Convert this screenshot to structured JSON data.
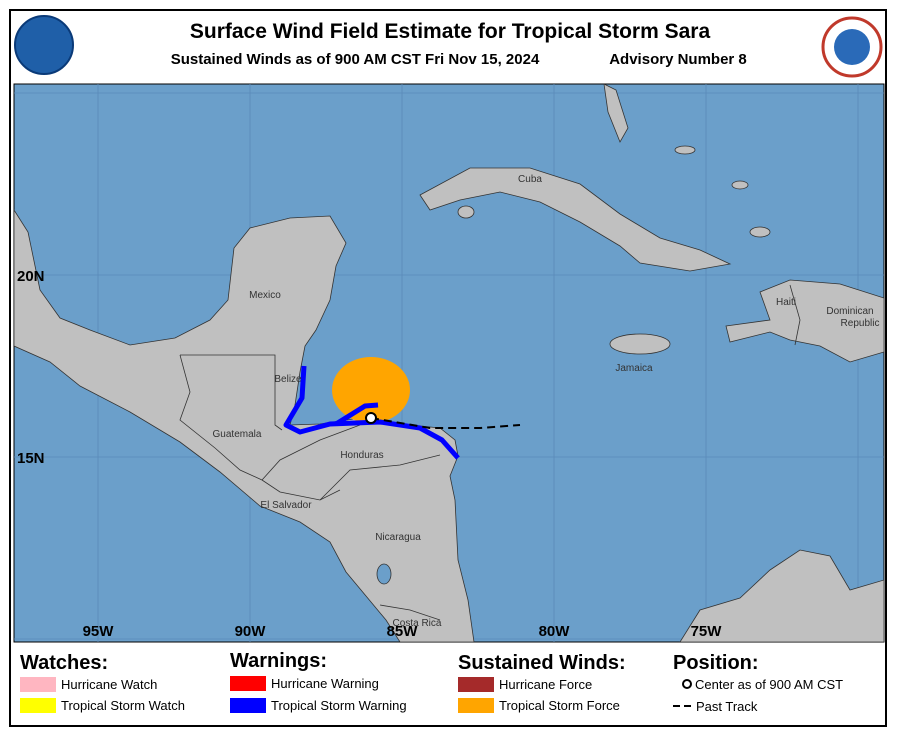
{
  "header": {
    "title": "Surface Wind Field Estimate for Tropical Storm Sara",
    "subtitle": "Sustained Winds as of 900 AM CST Fri Nov 15, 2024",
    "advisory": "Advisory Number 8"
  },
  "map": {
    "lat_labels": [
      "20N",
      "15N"
    ],
    "lon_labels": [
      "95W",
      "90W",
      "85W",
      "80W",
      "75W"
    ],
    "places": [
      "Cuba",
      "Mexico",
      "Belize",
      "Guatemala",
      "Honduras",
      "El Salvador",
      "Nicaragua",
      "Costa Rica",
      "Jamaica",
      "Haiti",
      "Dominican",
      "Republic"
    ]
  },
  "legend": {
    "watches": {
      "title": "Watches:",
      "items": [
        {
          "label": "Hurricane Watch",
          "color": "#ffb6c1"
        },
        {
          "label": "Tropical Storm Watch",
          "color": "#ffff00"
        }
      ]
    },
    "warnings": {
      "title": "Warnings:",
      "items": [
        {
          "label": "Hurricane Warning",
          "color": "#ff0000"
        },
        {
          "label": "Tropical Storm Warning",
          "color": "#0000ff"
        }
      ]
    },
    "winds": {
      "title": "Sustained Winds:",
      "items": [
        {
          "label": "Hurricane Force",
          "color": "#a52a2a"
        },
        {
          "label": "Tropical Storm Force",
          "color": "#ffa500"
        }
      ]
    },
    "position": {
      "title": "Position:",
      "items": [
        {
          "label": "Center as of 900 AM CST"
        },
        {
          "label": "Past Track"
        }
      ]
    }
  }
}
